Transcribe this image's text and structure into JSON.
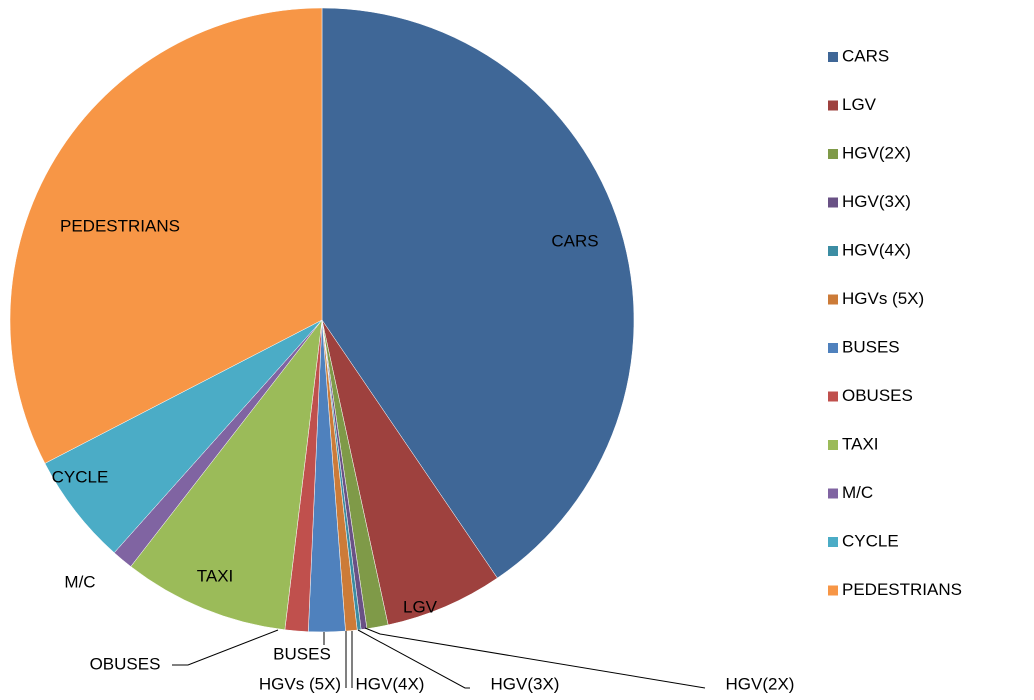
{
  "chart_data": {
    "type": "pie",
    "categories": [
      "CARS",
      "LGV",
      "HGV(2X)",
      "HGV(3X)",
      "HGV(4X)",
      "HGVs (5X)",
      "BUSES",
      "OBUSES",
      "TAXI",
      "M/C",
      "CYCLE",
      "PEDESTRIANS"
    ],
    "values": [
      40.5,
      6.1,
      1.1,
      0.3,
      0.2,
      0.6,
      1.9,
      1.2,
      8.6,
      1.1,
      5.8,
      32.6
    ],
    "colors": [
      "#3f6797",
      "#9e413e",
      "#7f9a48",
      "#695185",
      "#3c8da3",
      "#cc7b38",
      "#4f81bd",
      "#c0504d",
      "#9bbb59",
      "#8064a2",
      "#4bacc6",
      "#f79646"
    ],
    "legend": "right"
  }
}
